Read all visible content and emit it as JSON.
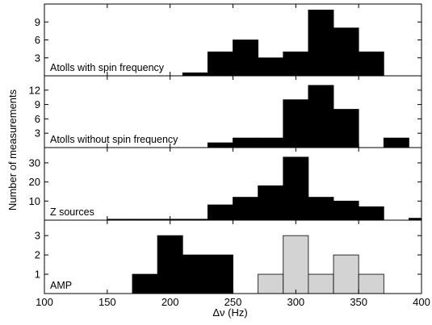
{
  "chart_data": {
    "type": "bar",
    "xlabel": "Δν (Hz)",
    "ylabel": "Number of measurements",
    "xlim": [
      100,
      400
    ],
    "xticks": [
      100,
      150,
      200,
      250,
      300,
      350,
      400
    ],
    "bin_width": 20,
    "colors": {
      "filled": "#000000",
      "light": "#d3d3d3",
      "edge": "#000000"
    },
    "panels": [
      {
        "label": "Atolls with spin frequency",
        "ylim": [
          0,
          12
        ],
        "yticks": [
          3,
          6,
          9
        ],
        "series": [
          {
            "color": "#000000",
            "bins": [
              {
                "x0": 210,
                "x1": 230,
                "value": 0.5
              },
              {
                "x0": 230,
                "x1": 250,
                "value": 4
              },
              {
                "x0": 250,
                "x1": 270,
                "value": 6
              },
              {
                "x0": 270,
                "x1": 290,
                "value": 3
              },
              {
                "x0": 290,
                "x1": 310,
                "value": 4
              },
              {
                "x0": 310,
                "x1": 330,
                "value": 11
              },
              {
                "x0": 330,
                "x1": 350,
                "value": 8
              },
              {
                "x0": 350,
                "x1": 370,
                "value": 4
              }
            ]
          }
        ]
      },
      {
        "label": "Atolls without spin frequency",
        "ylim": [
          0,
          15
        ],
        "yticks": [
          3,
          6,
          9,
          12
        ],
        "series": [
          {
            "color": "#000000",
            "bins": [
              {
                "x0": 230,
                "x1": 250,
                "value": 1
              },
              {
                "x0": 250,
                "x1": 270,
                "value": 2
              },
              {
                "x0": 270,
                "x1": 290,
                "value": 2
              },
              {
                "x0": 290,
                "x1": 310,
                "value": 10
              },
              {
                "x0": 310,
                "x1": 330,
                "value": 13
              },
              {
                "x0": 330,
                "x1": 350,
                "value": 8
              },
              {
                "x0": 370,
                "x1": 390,
                "value": 2
              }
            ]
          }
        ]
      },
      {
        "label": "Z sources",
        "ylim": [
          0,
          38
        ],
        "yticks": [
          10,
          20,
          30
        ],
        "series": [
          {
            "color": "#000000",
            "bins": [
              {
                "x0": 150,
                "x1": 170,
                "value": 0.5
              },
              {
                "x0": 170,
                "x1": 190,
                "value": 0.5
              },
              {
                "x0": 190,
                "x1": 210,
                "value": 0.5
              },
              {
                "x0": 210,
                "x1": 230,
                "value": 0.5
              },
              {
                "x0": 230,
                "x1": 250,
                "value": 8
              },
              {
                "x0": 250,
                "x1": 270,
                "value": 12
              },
              {
                "x0": 270,
                "x1": 290,
                "value": 18
              },
              {
                "x0": 290,
                "x1": 310,
                "value": 33
              },
              {
                "x0": 310,
                "x1": 330,
                "value": 12
              },
              {
                "x0": 330,
                "x1": 350,
                "value": 10
              },
              {
                "x0": 350,
                "x1": 370,
                "value": 7
              },
              {
                "x0": 390,
                "x1": 400,
                "value": 1
              }
            ]
          }
        ]
      },
      {
        "label": "AMP",
        "ylim": [
          0,
          3.8
        ],
        "yticks": [
          1,
          2,
          3
        ],
        "series": [
          {
            "color": "#000000",
            "bins": [
              {
                "x0": 170,
                "x1": 190,
                "value": 1
              },
              {
                "x0": 190,
                "x1": 210,
                "value": 3
              },
              {
                "x0": 210,
                "x1": 230,
                "value": 2
              },
              {
                "x0": 230,
                "x1": 250,
                "value": 2
              }
            ]
          },
          {
            "color": "#d3d3d3",
            "bins": [
              {
                "x0": 270,
                "x1": 290,
                "value": 1
              },
              {
                "x0": 290,
                "x1": 310,
                "value": 3
              },
              {
                "x0": 310,
                "x1": 330,
                "value": 1
              },
              {
                "x0": 330,
                "x1": 350,
                "value": 2
              },
              {
                "x0": 350,
                "x1": 370,
                "value": 1
              }
            ]
          }
        ]
      }
    ]
  }
}
